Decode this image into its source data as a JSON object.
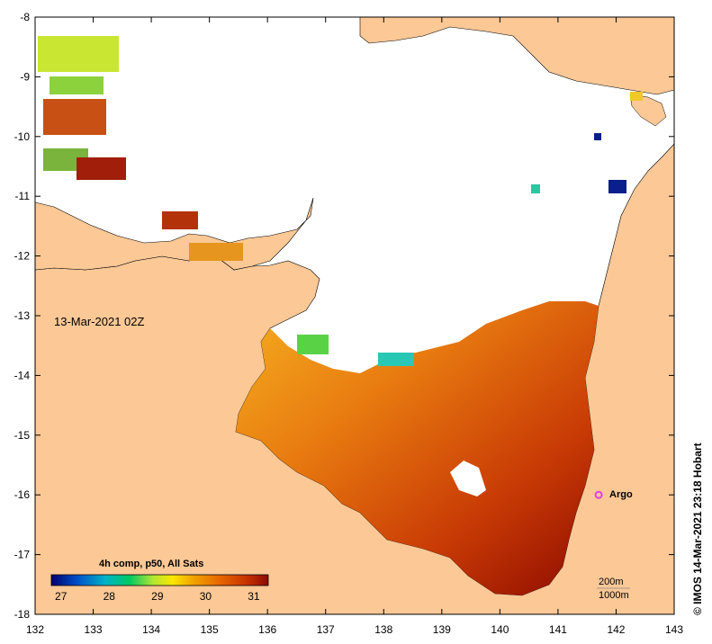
{
  "map": {
    "timestamp": "13-Mar-2021 02Z",
    "credit": "© IMOS 14-Mar-2021 23:18 Hobart",
    "land_color": "#fbc896",
    "no_data_color": "#ffffff",
    "x_ticks": [
      "132",
      "133",
      "134",
      "135",
      "136",
      "137",
      "138",
      "139",
      "140",
      "141",
      "142",
      "143"
    ],
    "y_ticks": [
      "-8",
      "-9",
      "-10",
      "-11",
      "-12",
      "-13",
      "-14",
      "-15",
      "-16",
      "-17",
      "-18"
    ],
    "argo": {
      "label": "Argo",
      "lon": 141.7,
      "lat": -16.0,
      "color": "#e040e0"
    },
    "legend": {
      "title": "4h comp, p50, All Sats",
      "labels": [
        "27",
        "28",
        "29",
        "30",
        "31"
      ],
      "range": [
        26.8,
        31.3
      ],
      "colors": [
        "#00006e",
        "#0050c8",
        "#00b4c8",
        "#00c864",
        "#b4e632",
        "#fae600",
        "#f0a000",
        "#e66400",
        "#c83200",
        "#8c0a00"
      ]
    },
    "scale": {
      "label_1": "200m",
      "label_2": "1000m"
    }
  }
}
